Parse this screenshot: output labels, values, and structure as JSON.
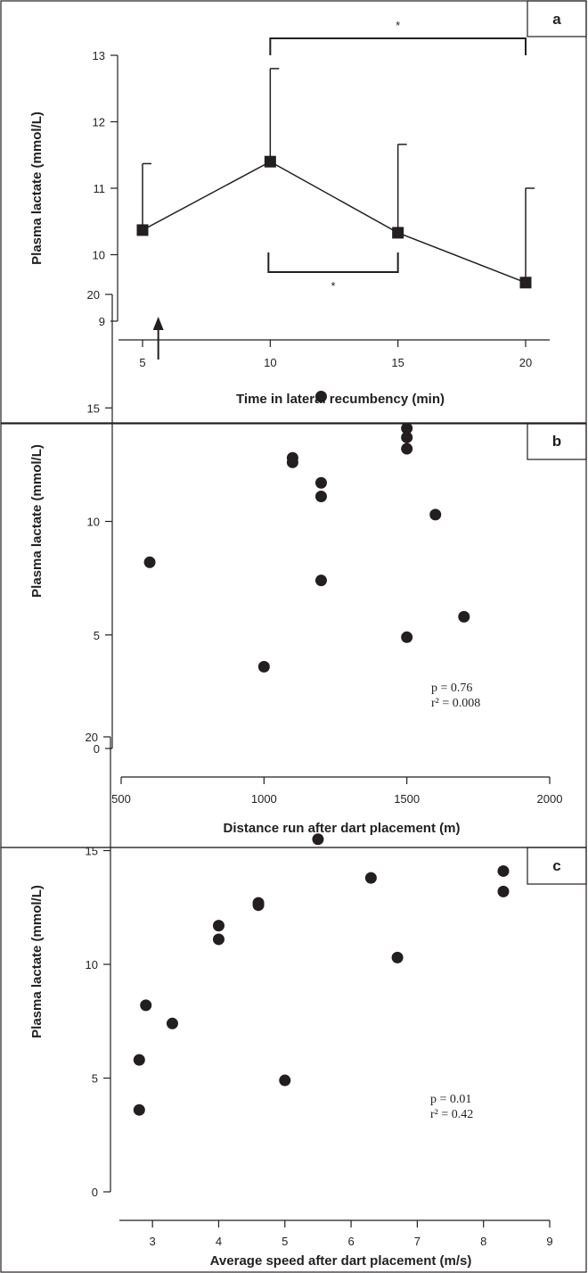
{
  "chart_data": [
    {
      "panel": "a",
      "type": "line",
      "x": [
        5,
        10,
        15,
        20
      ],
      "y": [
        10.37,
        11.4,
        10.33,
        9.58
      ],
      "error_upper": [
        11.37,
        12.8,
        11.66,
        11.0
      ],
      "xlabel": "Time in lateral recumbency (min)",
      "ylabel": "Plasma lactate (mmol/L)",
      "xticks": [
        "5",
        "10",
        "15",
        "20"
      ],
      "yticks": [
        "9",
        "10",
        "11",
        "12",
        "13"
      ],
      "xlim": [
        3.5,
        21.5
      ],
      "ylim": [
        9,
        13
      ],
      "arrow_at_x": 6,
      "significance": [
        {
          "from": 10,
          "to": 20,
          "label": "*",
          "position": "top"
        },
        {
          "from": 10,
          "to": 15,
          "label": "*",
          "position": "below"
        }
      ]
    },
    {
      "panel": "b",
      "type": "scatter",
      "points": [
        [
          600,
          8.2
        ],
        [
          1000,
          3.6
        ],
        [
          1100,
          12.8
        ],
        [
          1100,
          12.6
        ],
        [
          1200,
          15.5
        ],
        [
          1200,
          11.7
        ],
        [
          1200,
          11.1
        ],
        [
          1200,
          7.4
        ],
        [
          1500,
          14.1
        ],
        [
          1500,
          13.7
        ],
        [
          1500,
          13.2
        ],
        [
          1500,
          4.9
        ],
        [
          1600,
          10.3
        ],
        [
          1700,
          5.8
        ]
      ],
      "xlabel": "Distance run after dart placement (m)",
      "ylabel": "Plasma lactate (mmol/L)",
      "xticks": [
        "500",
        "1000",
        "1500",
        "2000"
      ],
      "yticks": [
        "0",
        "5",
        "10",
        "15",
        "20"
      ],
      "xlim": [
        500,
        2000
      ],
      "ylim": [
        0,
        20
      ],
      "stats": {
        "p": "p = 0.76",
        "r2": "r² = 0.008"
      }
    },
    {
      "panel": "c",
      "type": "scatter",
      "points": [
        [
          2.8,
          5.8
        ],
        [
          2.8,
          3.6
        ],
        [
          2.9,
          8.2
        ],
        [
          3.3,
          7.4
        ],
        [
          4.0,
          11.7
        ],
        [
          4.0,
          11.1
        ],
        [
          4.6,
          12.7
        ],
        [
          4.6,
          12.6
        ],
        [
          5.0,
          4.9
        ],
        [
          5.5,
          15.5
        ],
        [
          6.3,
          13.8
        ],
        [
          6.7,
          10.3
        ],
        [
          8.3,
          14.1
        ],
        [
          8.3,
          13.2
        ]
      ],
      "xlabel": "Average speed after dart placement (m/s)",
      "ylabel": "Plasma lactate (mmol/L)",
      "xticks": [
        "3",
        "4",
        "5",
        "6",
        "7",
        "8",
        "9"
      ],
      "yticks": [
        "0",
        "5",
        "10",
        "15",
        "20"
      ],
      "xlim": [
        2.5,
        9
      ],
      "ylim": [
        0,
        20
      ],
      "stats": {
        "p": "p = 0.01",
        "r2": "r² = 0.42"
      }
    }
  ],
  "colors": {
    "ink": "#231f20",
    "border": "#231f20",
    "background": "#ffffff"
  }
}
